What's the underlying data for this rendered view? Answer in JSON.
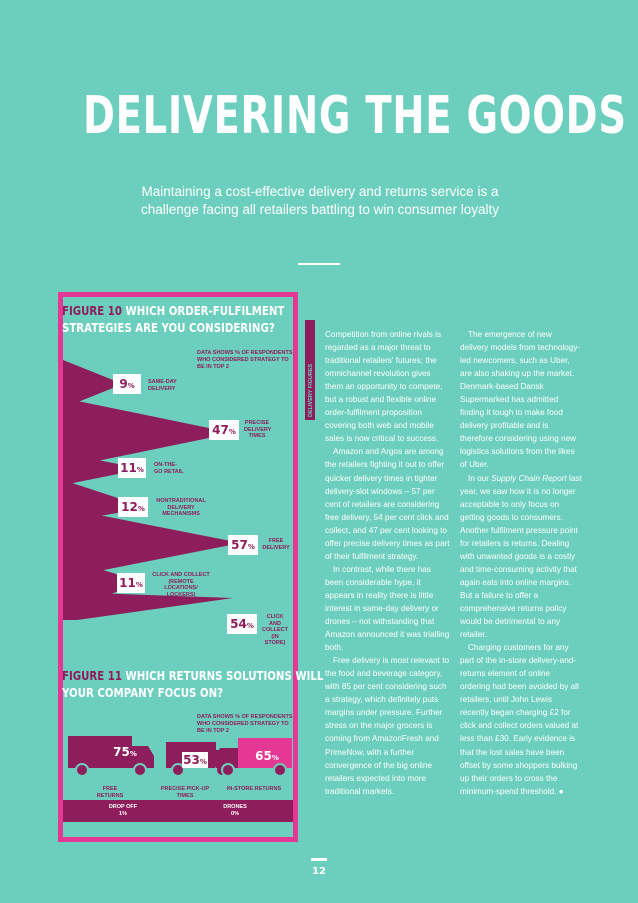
{
  "header": {
    "title": "DELIVERING THE GOODS",
    "standfirst": "Maintaining a cost-effective delivery and returns service is a challenge facing all retailers battling to win consumer loyalty"
  },
  "figure10": {
    "label": "FIGURE 10",
    "title_line1": "WHICH ORDER-FULFILMENT",
    "title_line2": "STRATEGIES ARE YOU CONSIDERING?",
    "note": "DATA SHOWS % OF RESPONDENTS WHO CONSIDERED STRATEGY TO BE IN TOP 2",
    "items": [
      {
        "value": "9",
        "label": "SAME-DAY DELIVERY"
      },
      {
        "value": "47",
        "label": "PRECISE DELIVERY TIMES"
      },
      {
        "value": "11",
        "label": "ON-THE-GO RETAIL"
      },
      {
        "value": "12",
        "label": "NONTRADITIONAL DELIVERY MECHANISMS"
      },
      {
        "value": "57",
        "label": "FREE DELIVERY"
      },
      {
        "value": "11",
        "label": "CLICK AND COLLECT (REMOTE LOCATIONS/ LOCKERS)"
      },
      {
        "value": "54",
        "label": "CLICK AND COLLECT (IN STORE)"
      }
    ]
  },
  "figure11": {
    "label": "FIGURE 11",
    "title_line1": "WHICH RETURNS SOLUTIONS WILL",
    "title_line2": "YOUR COMPANY FOCUS ON?",
    "note": "DATA SHOWS % OF RESPONDENTS WHO CONSIDERED STRATEGY TO BE IN TOP 2",
    "trucks": [
      {
        "value": "75",
        "label": "FREE RETURNS"
      },
      {
        "value": "53",
        "label": "PRECISE PICK-UP TIMES"
      },
      {
        "value": "65",
        "label": "IN-STORE RETURNS"
      }
    ],
    "drop_off": {
      "label": "DROP OFF",
      "value": "1%"
    },
    "drones": {
      "label": "DRONES",
      "value": "0%"
    }
  },
  "pct_sign": "%",
  "sidebar_vertical": "DELIVERY FIGURES",
  "column1": [
    "Competition from online rivals is regarded as a major threat to traditional retailers' futures; the omnichannel revolution gives them an opportunity to compete, but a robust and flexible online order-fulfilment proposition covering both web and mobile sales is now critical to success.",
    "Amazon and Argos are among the retailers fighting it out to offer quicker delivery times in tighter delivery-slot windows – 57 per cent of retailers are considering free delivery, 54 per cent click and collect, and 47 per cent looking to offer precise delivery times as part of their fulfilment strategy.",
    "In contrast, while there has been considerable hype, it appears in reality there is little interest in same-day delivery or drones – not withstanding that Amazon announced it was trialling both.",
    "Free delivery is most relevant to the food and beverage category, with 85 per cent considering such a strategy, which definitely puts margins under pressure. Further stress on the major grocers is coming from AmazonFresh and PrimeNow, with a further convergence of the big online retailers expected into more traditional markets."
  ],
  "column2": {
    "p1": "The emergence of new delivery models from technology-led newcomers, such as Uber, are also shaking up the market. Denmark-based Dansk Supermarked has admitted finding it tough to make food delivery profitable and is therefore considering using new logistics solutions from the likes of Uber.",
    "p2_pre": "In our ",
    "p2_em": "Supply Chain Report",
    "p2_post": " last year, we saw how it is no longer acceptable to only focus on getting goods to consumers. Another fulfilment pressure point for retailers is returns. Dealing with unwanted goods is a costly and time-consuming activity that again eats into online margins. But a failure to offer a comprehensive returns policy would be detrimental to any retailer.",
    "p3": "Charging customers for any part of the in-store delivery-and-returns element of online ordering had been avoided by all retailers, until John Lewis recently began charging £2 for click and collect orders valued at less than £30. Early evidence is that the lost sales have been offset by some shoppers bulking up their orders to cross the minimum-spend threshold. ●"
  },
  "page_number": "12",
  "colors": {
    "background": "#6ccfbe",
    "magenta": "#e43894",
    "plum": "#8e1d5c"
  }
}
